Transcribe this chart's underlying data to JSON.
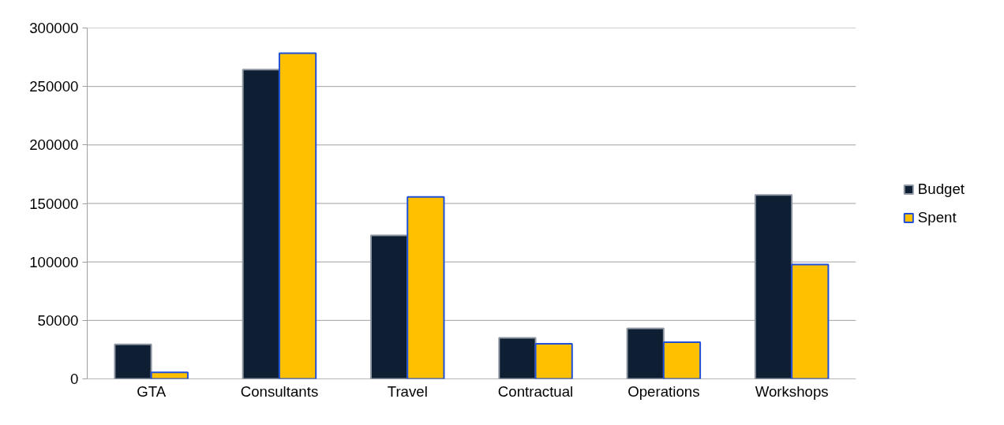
{
  "chart_data": {
    "type": "bar",
    "categories": [
      "GTA",
      "Consultants",
      "Travel",
      "Contractual",
      "Operations",
      "Workshops"
    ],
    "series": [
      {
        "name": "Budget",
        "color": "#0e1f33",
        "values": [
          29500,
          264500,
          122700,
          35000,
          43200,
          157300
        ]
      },
      {
        "name": "Spent",
        "color": "#ffc000",
        "values": [
          5500,
          278400,
          155500,
          30000,
          31400,
          97700
        ]
      }
    ],
    "ylim": [
      0,
      300000
    ],
    "yticks": [
      0,
      50000,
      100000,
      150000,
      200000,
      250000,
      300000
    ],
    "grid": "y",
    "legend": "right"
  }
}
